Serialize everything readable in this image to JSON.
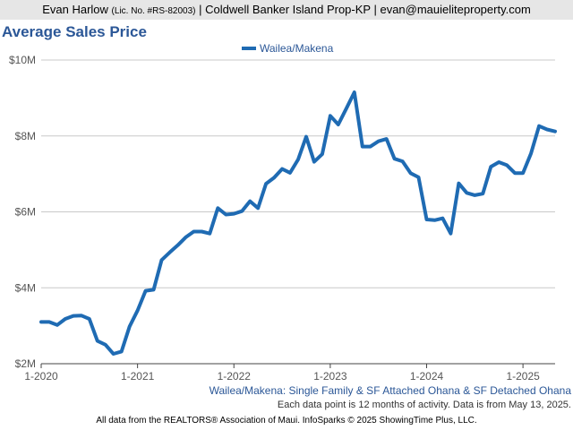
{
  "header": {
    "agent_name": "Evan Harlow",
    "license": "(Lic. No. #RS-82003)",
    "brokerage": "| Coldwell Banker Island Prop-KP |",
    "email": "evan@mauieliteproperty.com"
  },
  "chart_data": {
    "type": "line",
    "title": "Average Sales Price",
    "subtitle": "Wailea/Makena: Single Family & SF Attached Ohana & SF Detached Ohana",
    "note": "Each data point is 12 months of activity. Data is from May 13, 2025.",
    "legend": "top-center",
    "grid": true,
    "y_ticks": [
      "$2M",
      "$4M",
      "$6M",
      "$8M",
      "$10M"
    ],
    "ylim": [
      2000000,
      10000000
    ],
    "x_ticks": [
      "1-2020",
      "1-2021",
      "1-2022",
      "1-2023",
      "1-2024",
      "1-2025"
    ],
    "xlim": [
      "2020-01",
      "2025-05"
    ],
    "series": [
      {
        "name": "Wailea/Makena",
        "color": "#1f6bb3",
        "x": [
          "2020-01",
          "2020-02",
          "2020-03",
          "2020-04",
          "2020-05",
          "2020-06",
          "2020-07",
          "2020-08",
          "2020-09",
          "2020-10",
          "2020-11",
          "2020-12",
          "2021-01",
          "2021-02",
          "2021-03",
          "2021-04",
          "2021-05",
          "2021-06",
          "2021-07",
          "2021-08",
          "2021-09",
          "2021-10",
          "2021-11",
          "2021-12",
          "2022-01",
          "2022-02",
          "2022-03",
          "2022-04",
          "2022-05",
          "2022-06",
          "2022-07",
          "2022-08",
          "2022-09",
          "2022-10",
          "2022-11",
          "2022-12",
          "2023-01",
          "2023-02",
          "2023-03",
          "2023-04",
          "2023-05",
          "2023-06",
          "2023-07",
          "2023-08",
          "2023-09",
          "2023-10",
          "2023-11",
          "2023-12",
          "2024-01",
          "2024-02",
          "2024-03",
          "2024-04",
          "2024-05",
          "2024-06",
          "2024-07",
          "2024-08",
          "2024-09",
          "2024-10",
          "2024-11",
          "2024-12",
          "2025-01",
          "2025-02",
          "2025-03",
          "2025-04",
          "2025-05"
        ],
        "values": [
          3100000,
          3100000,
          3020000,
          3180000,
          3260000,
          3270000,
          3180000,
          2600000,
          2500000,
          2260000,
          2320000,
          2980000,
          3400000,
          3920000,
          3950000,
          4730000,
          4930000,
          5120000,
          5330000,
          5480000,
          5480000,
          5430000,
          6100000,
          5930000,
          5950000,
          6020000,
          6280000,
          6100000,
          6740000,
          6900000,
          7130000,
          7030000,
          7380000,
          7980000,
          7320000,
          7520000,
          8530000,
          8300000,
          8720000,
          9150000,
          7720000,
          7720000,
          7860000,
          7920000,
          7400000,
          7330000,
          7020000,
          6910000,
          5800000,
          5780000,
          5830000,
          5430000,
          6750000,
          6500000,
          6440000,
          6480000,
          7190000,
          7310000,
          7230000,
          7020000,
          7020000,
          7540000,
          8260000,
          8170000,
          8120000
        ]
      }
    ]
  },
  "footer": "All data from the REALTORS® Association of Maui. InfoSparks © 2025 ShowingTime Plus, LLC."
}
